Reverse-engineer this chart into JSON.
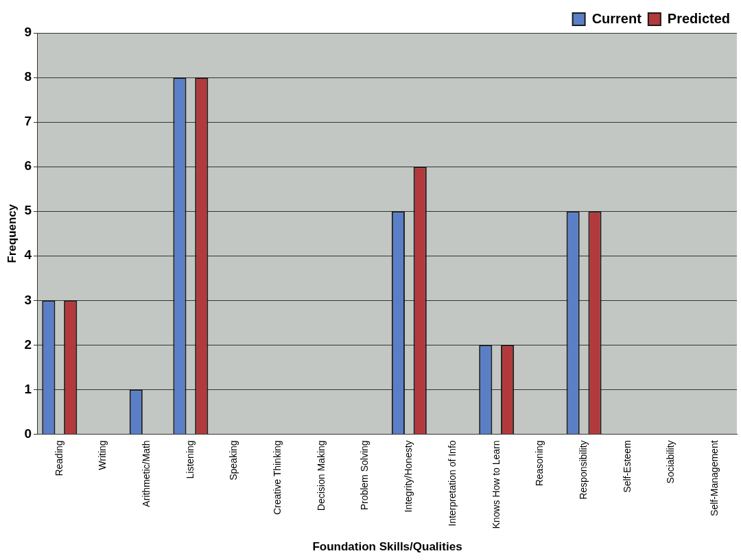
{
  "chart_data": {
    "type": "bar",
    "xlabel": "Foundation Skills/Qualities",
    "ylabel": "Frequency",
    "categories": [
      "Reading",
      "Writing",
      "Arithmetic/Math",
      "Listening",
      "Speaking",
      "Creative Thinking",
      "Decision Making",
      "Problem Solving",
      "Integrity/Honesty",
      "Interpretation of Info",
      "Knows How to Learn",
      "Reasoning",
      "Responsibility",
      "Self-Esteem",
      "Sociability",
      "Self-Management"
    ],
    "series": [
      {
        "name": "Current",
        "color": "#5b7fc6",
        "values": [
          3,
          0,
          1,
          8,
          0,
          0,
          0,
          0,
          5,
          0,
          2,
          0,
          5,
          0,
          0,
          0
        ]
      },
      {
        "name": "Predicted",
        "color": "#b23a3c",
        "values": [
          3,
          0,
          0,
          8,
          0,
          0,
          0,
          0,
          6,
          0,
          2,
          0,
          5,
          0,
          0,
          0
        ]
      }
    ],
    "ylim": [
      0,
      9
    ],
    "yticks": [
      0,
      1,
      2,
      3,
      4,
      5,
      6,
      7,
      8,
      9
    ],
    "grid": "y",
    "legend": "top right"
  }
}
